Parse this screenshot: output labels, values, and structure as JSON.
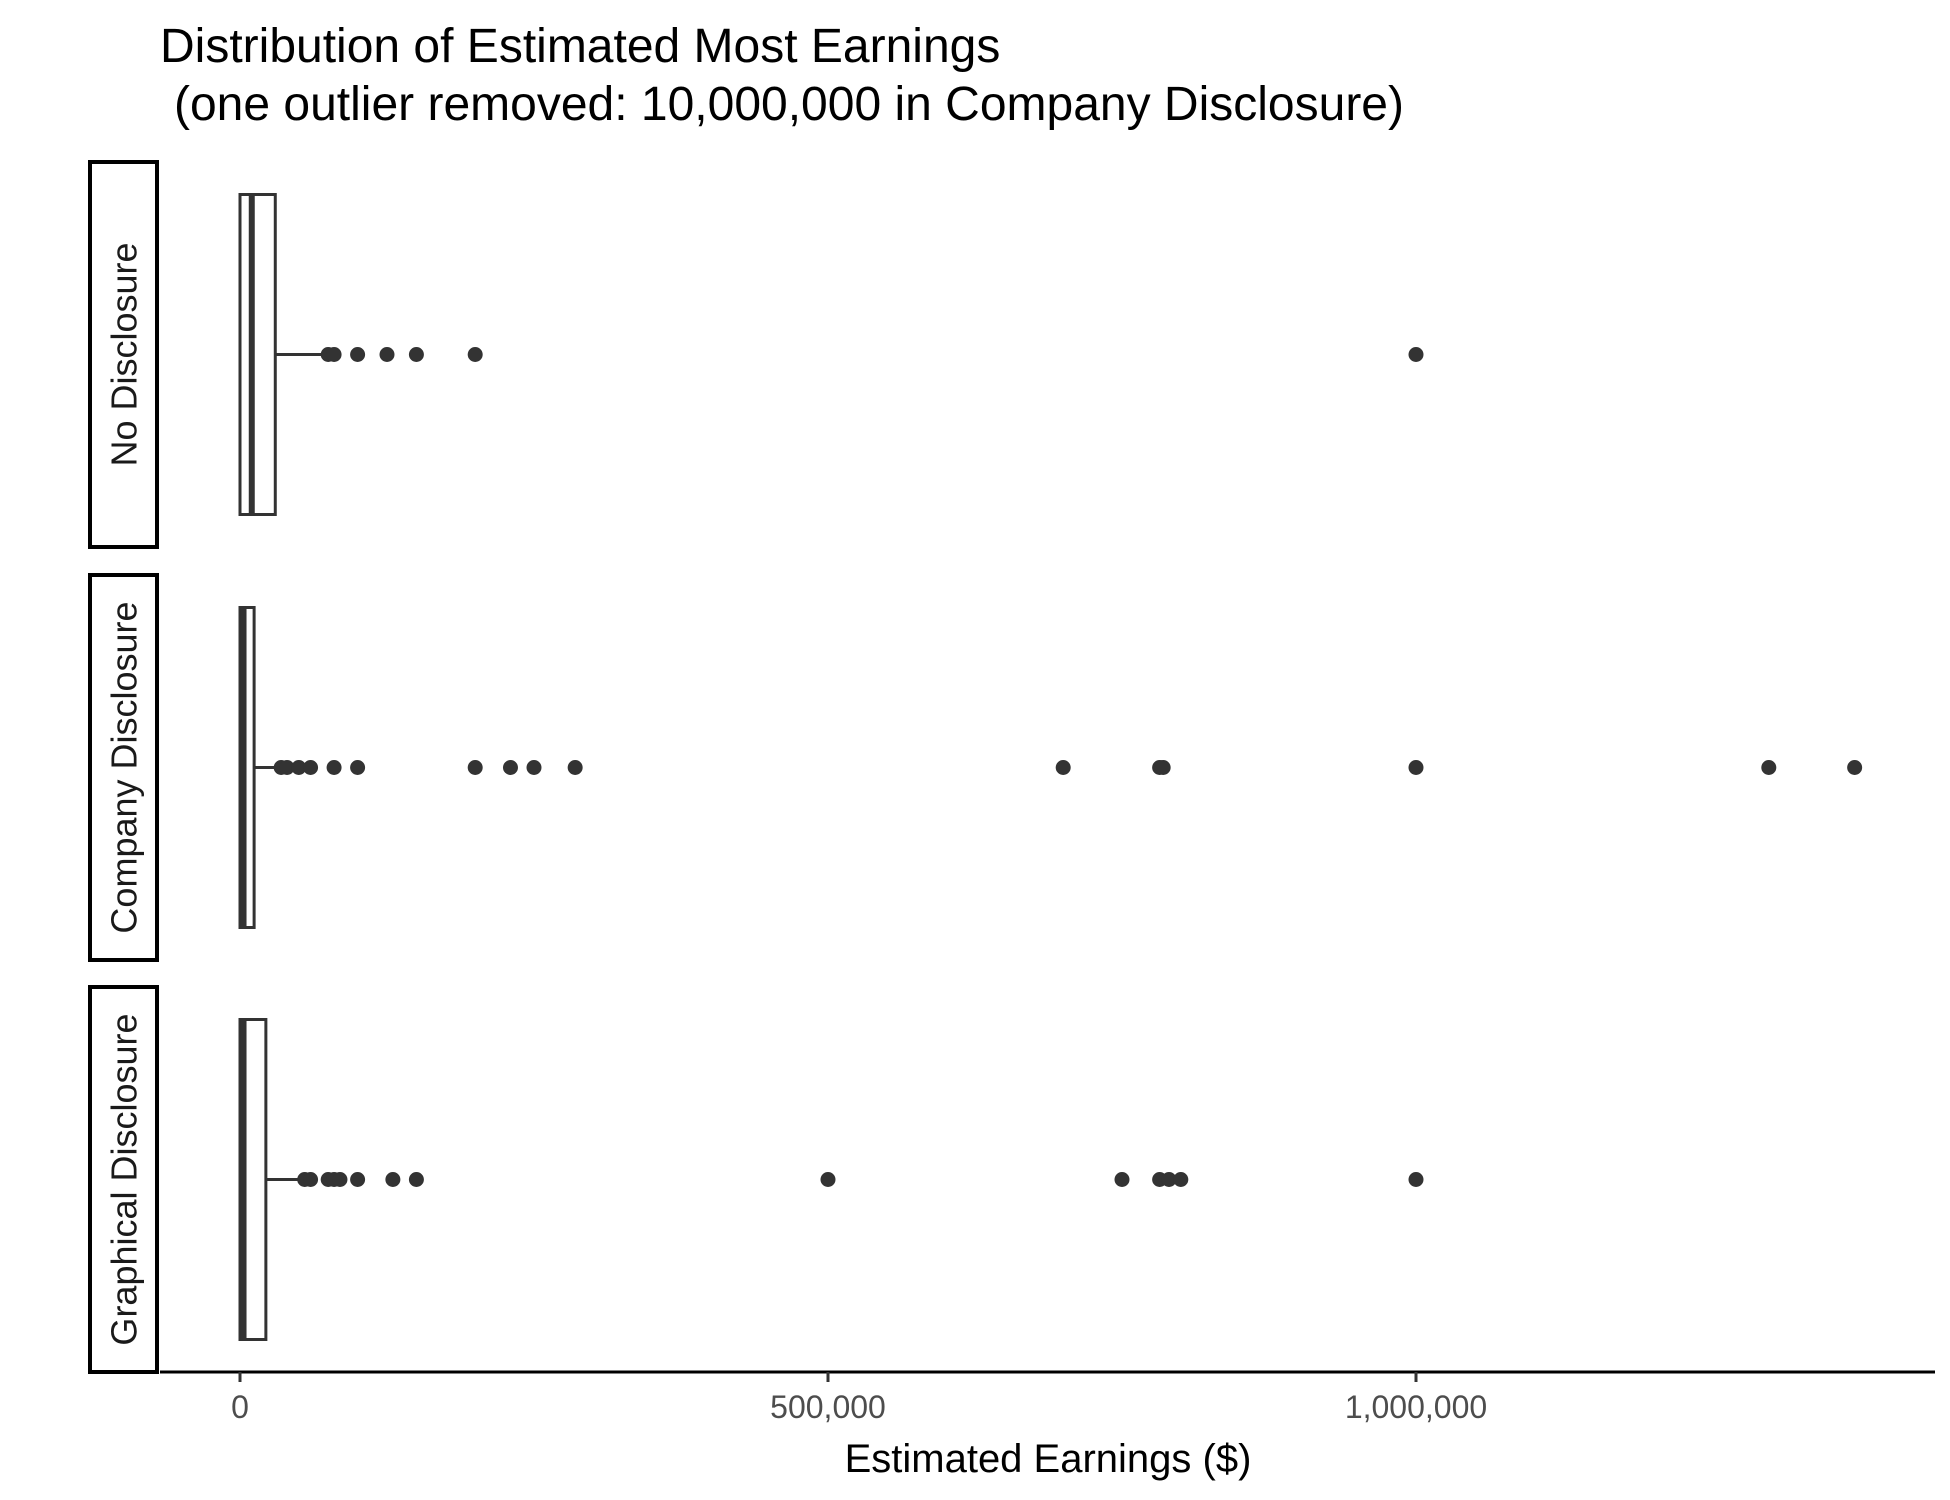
{
  "chart_data": {
    "type": "boxplot",
    "orientation": "horizontal",
    "title": "Distribution of Estimated Most Earnings",
    "subtitle": "(one outlier removed: 10,000,000 in Company Disclosure)",
    "xlabel": "Estimated Earnings ($)",
    "xlim": [
      -28000,
      1440000
    ],
    "x_ticks": [
      0,
      500000,
      1000000
    ],
    "x_tick_labels": [
      "0",
      "500,000",
      "1,000,000"
    ],
    "grid": false,
    "facets": [
      {
        "label": "No Disclosure",
        "box": {
          "min": 0,
          "q1": 2000,
          "median": 10000,
          "q3": 30000,
          "whisker_high": 75000
        },
        "outliers": [
          75000,
          80000,
          100000,
          125000,
          150000,
          200000,
          1000000
        ]
      },
      {
        "label": "Company Disclosure",
        "box": {
          "min": 0,
          "q1": 1000,
          "median": 3000,
          "q3": 12000,
          "whisker_high": 30000
        },
        "outliers": [
          35000,
          40000,
          50000,
          60000,
          80000,
          100000,
          200000,
          230000,
          250000,
          285000,
          700000,
          782000,
          785000,
          1000000,
          1300000,
          1373000
        ]
      },
      {
        "label": "Graphical Disclosure",
        "box": {
          "min": 0,
          "q1": 1000,
          "median": 3000,
          "q3": 22000,
          "whisker_high": 50000
        },
        "outliers": [
          55000,
          60000,
          75000,
          80000,
          85000,
          100000,
          130000,
          150000,
          500000,
          750000,
          782000,
          790000,
          800000,
          1000000
        ]
      }
    ],
    "colors": {
      "box_fill": "#ffffff",
      "box_line": "#333333",
      "point": "#333333",
      "axis": "#000000"
    }
  }
}
